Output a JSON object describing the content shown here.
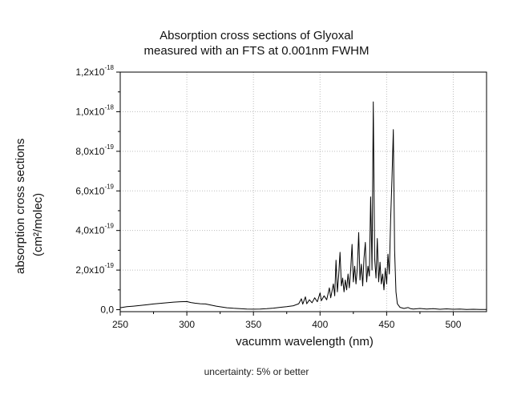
{
  "chart_data": {
    "type": "line",
    "title_lines": [
      "Absorption cross sections of Glyoxal",
      "measured with an FTS at 0.001nm FWHM"
    ],
    "xlabel": "vacumm wavelength (nm)",
    "ylabel_lines": [
      "absorption cross sections",
      "(cm²/molec)"
    ],
    "footnote": "uncertainty: 5% or better",
    "xlim": [
      250,
      525
    ],
    "ylim": [
      -1e-20,
      1.2e-18
    ],
    "grid": true,
    "x_ticks": [
      {
        "value": 250,
        "label": "250"
      },
      {
        "value": 300,
        "label": "300"
      },
      {
        "value": 350,
        "label": "350"
      },
      {
        "value": 400,
        "label": "400"
      },
      {
        "value": 450,
        "label": "450"
      },
      {
        "value": 500,
        "label": "500"
      }
    ],
    "y_ticks": [
      {
        "value": 0,
        "mantissa": "0,0",
        "exponent": ""
      },
      {
        "value": 2e-19,
        "mantissa": "2,0x10",
        "exponent": "-19"
      },
      {
        "value": 4e-19,
        "mantissa": "4,0x10",
        "exponent": "-19"
      },
      {
        "value": 6e-19,
        "mantissa": "6,0x10",
        "exponent": "-19"
      },
      {
        "value": 8e-19,
        "mantissa": "8,0x10",
        "exponent": "-19"
      },
      {
        "value": 1e-18,
        "mantissa": "1,0x10",
        "exponent": "-18"
      },
      {
        "value": 1.2e-18,
        "mantissa": "1,2x10",
        "exponent": "-18"
      }
    ],
    "series": [
      {
        "color": "#000000",
        "points": [
          [
            250,
            1e-20
          ],
          [
            255,
            1.5e-20
          ],
          [
            260,
            1.8e-20
          ],
          [
            265,
            2.1e-20
          ],
          [
            270,
            2.5e-20
          ],
          [
            275,
            2.9e-20
          ],
          [
            280,
            3.2e-20
          ],
          [
            285,
            3.5e-20
          ],
          [
            290,
            3.8e-20
          ],
          [
            295,
            4e-20
          ],
          [
            300,
            4.1e-20
          ],
          [
            303,
            3.6e-20
          ],
          [
            306,
            3.3e-20
          ],
          [
            310,
            3e-20
          ],
          [
            314,
            2.9e-20
          ],
          [
            318,
            2.3e-20
          ],
          [
            322,
            1.8e-20
          ],
          [
            326,
            1.4e-20
          ],
          [
            330,
            1e-20
          ],
          [
            335,
            7e-21
          ],
          [
            340,
            5e-21
          ],
          [
            345,
            3.5e-21
          ],
          [
            350,
            2.5e-21
          ],
          [
            355,
            3e-21
          ],
          [
            360,
            5e-21
          ],
          [
            365,
            8e-21
          ],
          [
            370,
            1.2e-20
          ],
          [
            375,
            1.5e-20
          ],
          [
            380,
            2e-20
          ],
          [
            384,
            3e-20
          ],
          [
            386,
            5.5e-20
          ],
          [
            387,
            2.8e-20
          ],
          [
            389,
            6.5e-20
          ],
          [
            390,
            3e-20
          ],
          [
            392,
            5e-20
          ],
          [
            394,
            3.5e-20
          ],
          [
            396,
            6e-20
          ],
          [
            398,
            4e-20
          ],
          [
            400,
            8.5e-20
          ],
          [
            401,
            4.5e-20
          ],
          [
            403,
            7e-20
          ],
          [
            405,
            5e-20
          ],
          [
            407,
            1.1e-19
          ],
          [
            408,
            6e-20
          ],
          [
            410,
            1.3e-19
          ],
          [
            411,
            7e-20
          ],
          [
            412,
            2.5e-19
          ],
          [
            413,
            9e-20
          ],
          [
            414,
            1.7e-19
          ],
          [
            415,
            2.9e-19
          ],
          [
            416,
            1.2e-19
          ],
          [
            417,
            1.6e-19
          ],
          [
            418,
            9e-20
          ],
          [
            419,
            1.5e-19
          ],
          [
            420,
            1e-19
          ],
          [
            421,
            1.8e-19
          ],
          [
            422,
            1.1e-19
          ],
          [
            423,
            2e-19
          ],
          [
            424,
            3.3e-19
          ],
          [
            425,
            1.4e-19
          ],
          [
            426,
            2.2e-19
          ],
          [
            427,
            1.3e-19
          ],
          [
            428,
            2.1e-19
          ],
          [
            429,
            3.9e-19
          ],
          [
            430,
            1.5e-19
          ],
          [
            431,
            2.3e-19
          ],
          [
            432,
            1.2e-19
          ],
          [
            433,
            2.6e-19
          ],
          [
            434,
            3.4e-19
          ],
          [
            435,
            1.4e-19
          ],
          [
            436,
            2.2e-19
          ],
          [
            437,
            1.7e-19
          ],
          [
            438,
            5.7e-19
          ],
          [
            439,
            2e-19
          ],
          [
            440,
            1.05e-18
          ],
          [
            441,
            2.6e-19
          ],
          [
            442,
            1.6e-19
          ],
          [
            443,
            3.6e-19
          ],
          [
            444,
            1.4e-19
          ],
          [
            445,
            2.4e-19
          ],
          [
            446,
            1.3e-19
          ],
          [
            447,
            1.8e-19
          ],
          [
            448,
            1e-19
          ],
          [
            449,
            2.1e-19
          ],
          [
            450,
            1.3e-19
          ],
          [
            451,
            2.8e-19
          ],
          [
            452,
            1.8e-19
          ],
          [
            453,
            4.5e-19
          ],
          [
            454,
            6.6e-19
          ],
          [
            455,
            9.1e-19
          ],
          [
            456,
            3e-19
          ],
          [
            457,
            9e-20
          ],
          [
            458,
            3e-20
          ],
          [
            460,
            1.2e-20
          ],
          [
            463,
            6e-21
          ],
          [
            466,
            1.1e-20
          ],
          [
            468,
            5e-21
          ],
          [
            470,
            3e-21
          ],
          [
            475,
            6e-21
          ],
          [
            480,
            3e-21
          ],
          [
            485,
            5e-21
          ],
          [
            490,
            2e-21
          ],
          [
            495,
            4e-21
          ],
          [
            500,
            2e-21
          ],
          [
            505,
            3e-21
          ],
          [
            510,
            1.5e-21
          ],
          [
            515,
            2e-21
          ],
          [
            520,
            1.5e-21
          ],
          [
            525,
            1e-21
          ]
        ]
      }
    ]
  }
}
